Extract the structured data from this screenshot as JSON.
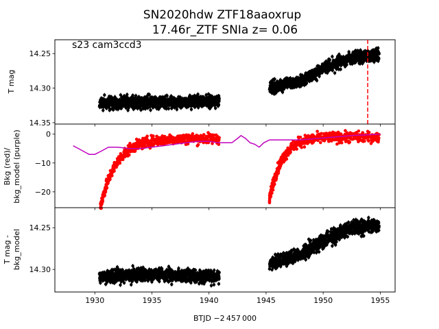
{
  "figure": {
    "title_line1": "SN2020hdw  ZTF18aaoxrup",
    "title_line2": "17.46r_ZTF SNIa z= 0.06",
    "xlabel": "BTJD −2 457 000",
    "x_ticks": [
      1930,
      1935,
      1940,
      1945,
      1950,
      1955
    ],
    "xlim": [
      1926.5,
      1956.3
    ]
  },
  "chart_data": [
    {
      "type": "scatter",
      "panel": "top",
      "annotation": "s23 cam3ccd3",
      "ylabel": "T mag",
      "ylim": [
        14.352,
        14.23
      ],
      "inverted_y": true,
      "y_ticks": [
        14.25,
        14.3,
        14.35
      ],
      "color": "#000000",
      "vline": {
        "x": 1953.9,
        "color": "#ff0000",
        "style": "dashed"
      },
      "series": [
        {
          "segment": [
            1930.4,
            1940.9
          ],
          "trend": [
            [
              1930.4,
              14.322
            ],
            [
              1935.5,
              14.32
            ],
            [
              1940.9,
              14.319
            ]
          ],
          "scatter": 0.01
        },
        {
          "segment": [
            1945.3,
            1954.9
          ],
          "trend": [
            [
              1945.3,
              14.3
            ],
            [
              1948.0,
              14.29
            ],
            [
              1950.5,
              14.268
            ],
            [
              1952.5,
              14.256
            ],
            [
              1954.9,
              14.253
            ]
          ],
          "scatter": 0.01
        }
      ]
    },
    {
      "type": "scatter",
      "panel": "middle",
      "ylabel_line1": "Bkg (red)/",
      "ylabel_line2": "bkg_model (purple)",
      "ylim": [
        -25.5,
        3.5
      ],
      "y_ticks": [
        0,
        -10,
        -20
      ],
      "series": [
        {
          "name": "Bkg",
          "color": "#ff0000",
          "curves": [
            {
              "segment": [
                1930.5,
                1940.9
              ],
              "floor": -25,
              "final": -1.5,
              "tau": 1.4
            },
            {
              "segment": [
                1945.3,
                1954.9
              ],
              "floor": -22.5,
              "final": -1.0,
              "tau": 1.1
            }
          ]
        },
        {
          "name": "bkg_model",
          "color": "#bf00bf",
          "line": [
            [
              1928.1,
              -4.0
            ],
            [
              1928.8,
              -5.5
            ],
            [
              1929.5,
              -7.0
            ],
            [
              1930.0,
              -7.0
            ],
            [
              1930.5,
              -6.0
            ],
            [
              1931.2,
              -4.5
            ],
            [
              1932.0,
              -4.5
            ],
            [
              1933.0,
              -5.0
            ],
            [
              1934.0,
              -5.0
            ],
            [
              1935.0,
              -4.5
            ],
            [
              1936.0,
              -4.0
            ],
            [
              1937.0,
              -3.5
            ],
            [
              1938.0,
              -3.0
            ],
            [
              1939.0,
              -2.5
            ],
            [
              1940.0,
              -2.5
            ],
            [
              1940.8,
              -3.0
            ],
            [
              1941.5,
              -3.0
            ],
            [
              1942.0,
              -3.0
            ],
            [
              1942.5,
              -1.5
            ],
            [
              1942.8,
              -0.5
            ],
            [
              1943.2,
              -1.5
            ],
            [
              1943.6,
              -3.0
            ],
            [
              1944.0,
              -3.5
            ],
            [
              1944.4,
              -4.5
            ],
            [
              1944.8,
              -3.0
            ],
            [
              1945.3,
              -2.0
            ],
            [
              1946.5,
              -2.0
            ],
            [
              1948.0,
              -2.0
            ],
            [
              1949.5,
              -1.5
            ],
            [
              1951.0,
              -1.0
            ],
            [
              1952.5,
              -0.5
            ],
            [
              1954.0,
              -0.2
            ],
            [
              1955.0,
              0.0
            ]
          ]
        }
      ]
    },
    {
      "type": "scatter",
      "panel": "bottom",
      "ylabel_line1": "T mag -",
      "ylabel_line2": "bkg_model",
      "ylim": [
        14.327,
        14.226
      ],
      "inverted_y": true,
      "y_ticks": [
        14.25,
        14.3
      ],
      "color": "#000000",
      "series": [
        {
          "segment": [
            1930.4,
            1940.9
          ],
          "trend": [
            [
              1930.4,
              14.308
            ],
            [
              1935.0,
              14.306
            ],
            [
              1940.9,
              14.309
            ]
          ],
          "scatter": 0.009
        },
        {
          "segment": [
            1945.3,
            1954.9
          ],
          "trend": [
            [
              1945.3,
              14.293
            ],
            [
              1948.0,
              14.282
            ],
            [
              1950.5,
              14.262
            ],
            [
              1952.5,
              14.25
            ],
            [
              1954.9,
              14.248
            ]
          ],
          "scatter": 0.009
        }
      ]
    }
  ]
}
